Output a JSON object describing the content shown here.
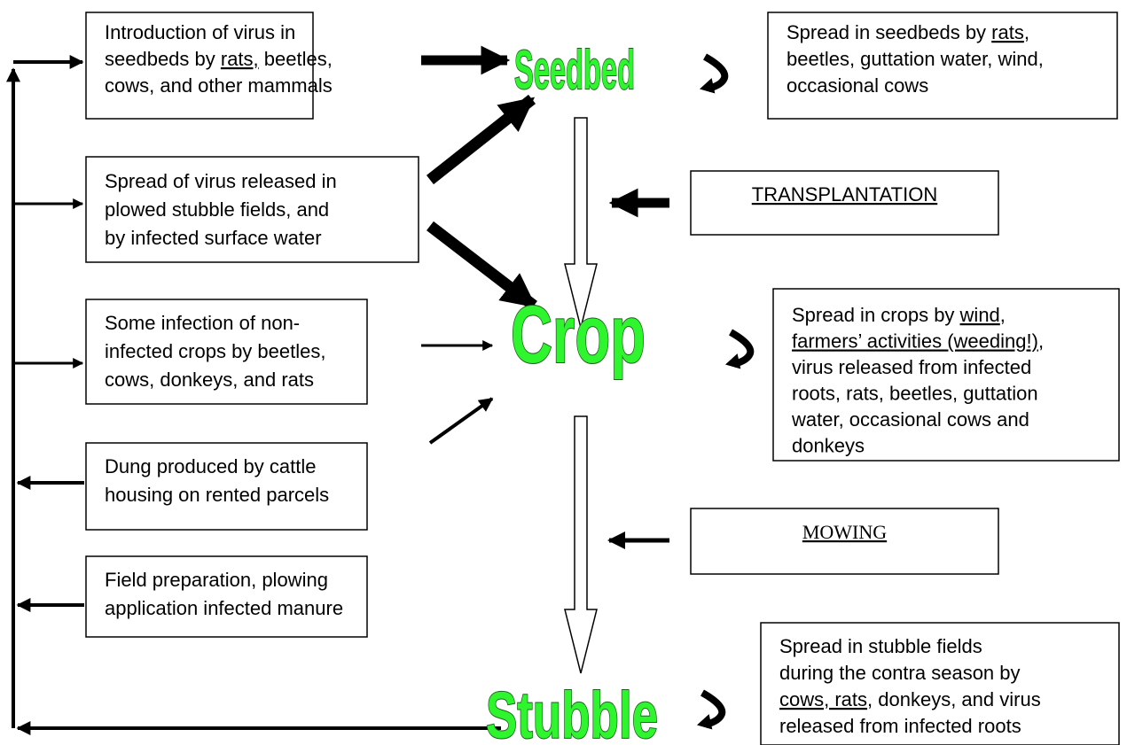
{
  "boxes": [
    {
      "lines": [
        [
          {
            "text": "Introduction of virus in"
          }
        ],
        [
          {
            "text": "seedbeds by "
          },
          {
            "text": "rats,",
            "underline": true
          },
          {
            "text": " beetles,"
          }
        ],
        [
          {
            "text": "cows, and other mammals"
          }
        ]
      ]
    },
    {
      "lines": [
        [
          {
            "text": "Spread in seedbeds by "
          },
          {
            "text": "rats",
            "underline": true
          },
          {
            "text": ","
          }
        ],
        [
          {
            "text": "beetles, guttation water, wind,"
          }
        ],
        [
          {
            "text": "occasional cows"
          }
        ]
      ]
    },
    {
      "lines": [
        [
          {
            "text": "Spread of virus released in"
          }
        ],
        [
          {
            "text": "plowed stubble fields, and"
          }
        ],
        [
          {
            "text": "by infected surface water"
          }
        ]
      ]
    },
    {
      "lines": [
        [
          {
            "text": "Some infection of non-"
          }
        ],
        [
          {
            "text": "infected crops by beetles,"
          }
        ],
        [
          {
            "text": "cows, donkeys, and rats"
          }
        ]
      ]
    },
    {
      "lines": [
        [
          {
            "text": "Spread in crops by "
          },
          {
            "text": "wind",
            "underline": true
          },
          {
            "text": ","
          }
        ],
        [
          {
            "text": "farmers’ activities (weeding!)",
            "underline": true
          },
          {
            "text": ","
          }
        ],
        [
          {
            "text": "virus released from infected"
          }
        ],
        [
          {
            "text": "roots, rats, beetles, guttation"
          }
        ],
        [
          {
            "text": "water, occasional cows and"
          }
        ],
        [
          {
            "text": "donkeys"
          }
        ]
      ]
    },
    {
      "lines": [
        [
          {
            "text": "Dung produced by cattle"
          }
        ],
        [
          {
            "text": "housing on rented parcels"
          }
        ]
      ]
    },
    {
      "lines": [
        [
          {
            "text": "Field preparation, plowing"
          }
        ],
        [
          {
            "text": "application infected manure"
          }
        ]
      ]
    },
    {
      "lines": [
        [
          {
            "text": "Spread in stubble fields"
          }
        ],
        [
          {
            "text": "during the contra season by"
          }
        ],
        [
          {
            "text": "cows, rats",
            "underline": true
          },
          {
            "text": ", donkeys, and virus"
          }
        ],
        [
          {
            "text": "released from infected roots"
          }
        ]
      ]
    }
  ],
  "actions": [
    "TRANSPLANTATION",
    "MOWING"
  ],
  "stages": [
    "Seedbed",
    "Crop",
    "Stubble"
  ]
}
